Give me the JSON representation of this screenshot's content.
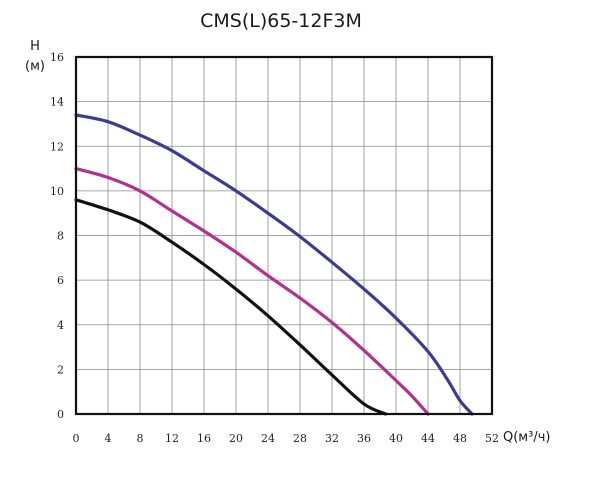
{
  "chart_data": {
    "type": "line",
    "title": "CMS(L)65-12F3M",
    "ylabel": "H",
    "ylabel_unit": "(м)",
    "xlabel": "Q(м³/ч)",
    "xlim": [
      0,
      52
    ],
    "ylim": [
      0,
      16
    ],
    "x_ticks": [
      0,
      4,
      8,
      12,
      16,
      20,
      24,
      28,
      32,
      36,
      40,
      44,
      48,
      52
    ],
    "y_ticks": [
      0,
      2,
      4,
      6,
      8,
      10,
      12,
      14,
      16
    ],
    "grid": true,
    "legend": "none",
    "series": [
      {
        "color": "#3b3b8f",
        "points": [
          [
            0,
            13.4
          ],
          [
            4,
            13.1
          ],
          [
            8,
            12.5
          ],
          [
            12,
            11.8
          ],
          [
            16,
            10.9
          ],
          [
            20,
            10.0
          ],
          [
            24,
            9.0
          ],
          [
            28,
            7.95
          ],
          [
            32,
            6.8
          ],
          [
            36,
            5.6
          ],
          [
            40,
            4.3
          ],
          [
            44,
            2.8
          ],
          [
            46.5,
            1.5
          ],
          [
            48,
            0.6
          ],
          [
            49.5,
            0.0
          ]
        ]
      },
      {
        "color": "#b0318f",
        "points": [
          [
            0,
            11.0
          ],
          [
            4,
            10.6
          ],
          [
            8,
            10.0
          ],
          [
            12,
            9.1
          ],
          [
            16,
            8.2
          ],
          [
            20,
            7.25
          ],
          [
            24,
            6.2
          ],
          [
            28,
            5.2
          ],
          [
            32,
            4.1
          ],
          [
            36,
            2.85
          ],
          [
            40,
            1.5
          ],
          [
            42,
            0.8
          ],
          [
            44,
            0.0
          ]
        ]
      },
      {
        "color": "#111111",
        "points": [
          [
            0,
            9.6
          ],
          [
            4,
            9.15
          ],
          [
            8,
            8.6
          ],
          [
            12,
            7.7
          ],
          [
            16,
            6.7
          ],
          [
            20,
            5.6
          ],
          [
            24,
            4.4
          ],
          [
            28,
            3.1
          ],
          [
            32,
            1.75
          ],
          [
            36,
            0.45
          ],
          [
            38.7,
            0.0
          ]
        ]
      }
    ]
  }
}
